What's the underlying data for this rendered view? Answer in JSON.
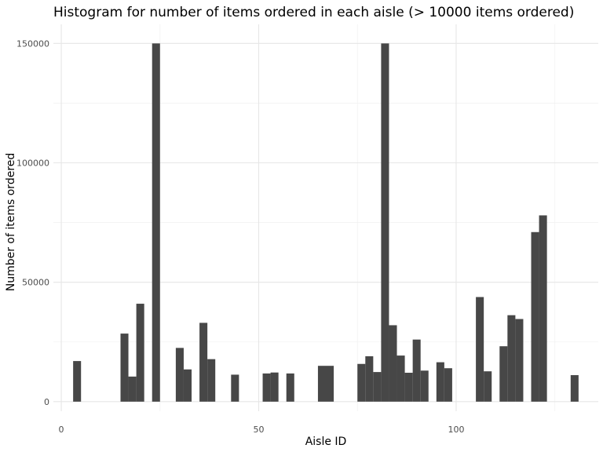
{
  "chart_data": {
    "type": "bar",
    "title": "Histogram for number of items ordered in each aisle (> 10000 items ordered)",
    "xlabel": "Aisle ID",
    "ylabel": "Number of items ordered",
    "xlim": [
      -2,
      136
    ],
    "ylim": [
      -4000,
      158000
    ],
    "x_ticks": [
      0,
      50,
      100
    ],
    "x_tick_labels": [
      "0",
      "50",
      "100"
    ],
    "y_ticks": [
      0,
      50000,
      100000,
      150000
    ],
    "y_tick_labels": [
      "0",
      "50000",
      "100000",
      "150000"
    ],
    "grid": true,
    "bin_width": 2,
    "x": [
      4,
      16,
      18,
      20,
      24,
      30,
      32,
      36,
      38,
      44,
      52,
      54,
      58,
      66,
      68,
      76,
      78,
      80,
      82,
      84,
      86,
      88,
      90,
      92,
      96,
      98,
      106,
      108,
      112,
      114,
      116,
      120,
      122,
      130
    ],
    "values": [
      17000,
      28500,
      10500,
      41000,
      150000,
      22500,
      13500,
      33000,
      17800,
      11300,
      11800,
      12200,
      11800,
      15000,
      15000,
      15800,
      19000,
      12400,
      150000,
      32000,
      19300,
      12100,
      26000,
      13000,
      16500,
      14000,
      43800,
      12700,
      23200,
      36200,
      34600,
      71000,
      78000,
      11100
    ]
  }
}
